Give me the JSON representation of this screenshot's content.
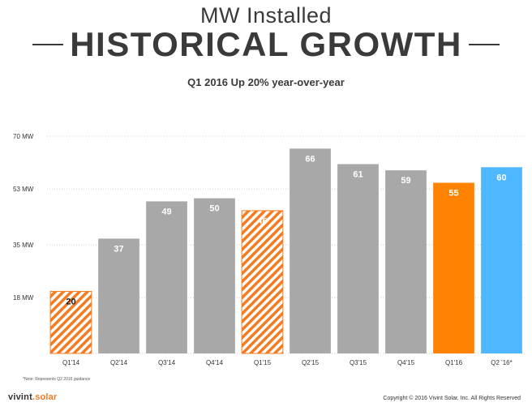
{
  "header": {
    "title_top": "MW Installed",
    "title_main": "HISTORICAL GROWTH",
    "subtitle": "Q1 2016 Up 20% year-over-year"
  },
  "chart_data": {
    "type": "bar",
    "categories": [
      "Q1'14",
      "Q2'14",
      "Q3'14",
      "Q4'14",
      "Q1'15",
      "Q2'15",
      "Q3'15",
      "Q4'15",
      "Q1'16",
      "Q2 '16*"
    ],
    "values": [
      20,
      37,
      49,
      50,
      46,
      66,
      61,
      59,
      55,
      60
    ],
    "value_labels": [
      "20",
      "37",
      "49",
      "50",
      "46",
      "66",
      "61",
      "59",
      "55",
      "60"
    ],
    "styles": [
      "hatched",
      "solid",
      "solid",
      "solid",
      "hatched",
      "solid",
      "solid",
      "solid",
      "solid",
      "solid"
    ],
    "colors": [
      "#f47b20",
      "#a8a8a8",
      "#a8a8a8",
      "#a8a8a8",
      "#f47b20",
      "#a8a8a8",
      "#a8a8a8",
      "#a8a8a8",
      "#ff8200",
      "#4db8ff"
    ],
    "label_colors": [
      "#222222",
      "#ffffff",
      "#ffffff",
      "#ffffff",
      "#ffffff",
      "#ffffff",
      "#ffffff",
      "#ffffff",
      "#ffffff",
      "#ffffff"
    ],
    "yticks": [
      18,
      35,
      53,
      70
    ],
    "ytick_labels": [
      "18 MW",
      "35 MW",
      "53 MW",
      "70 MW"
    ],
    "ylim": [
      0,
      70
    ],
    "grid": true,
    "legend": "none"
  },
  "footer": {
    "footnote": "*Note: Represents Q2 2016 guidance",
    "logo_part1": "vivint",
    "logo_part2": ".solar",
    "copyright": "Copyright © 2016 Vivint Solar, Inc. All Rights Reserved"
  }
}
